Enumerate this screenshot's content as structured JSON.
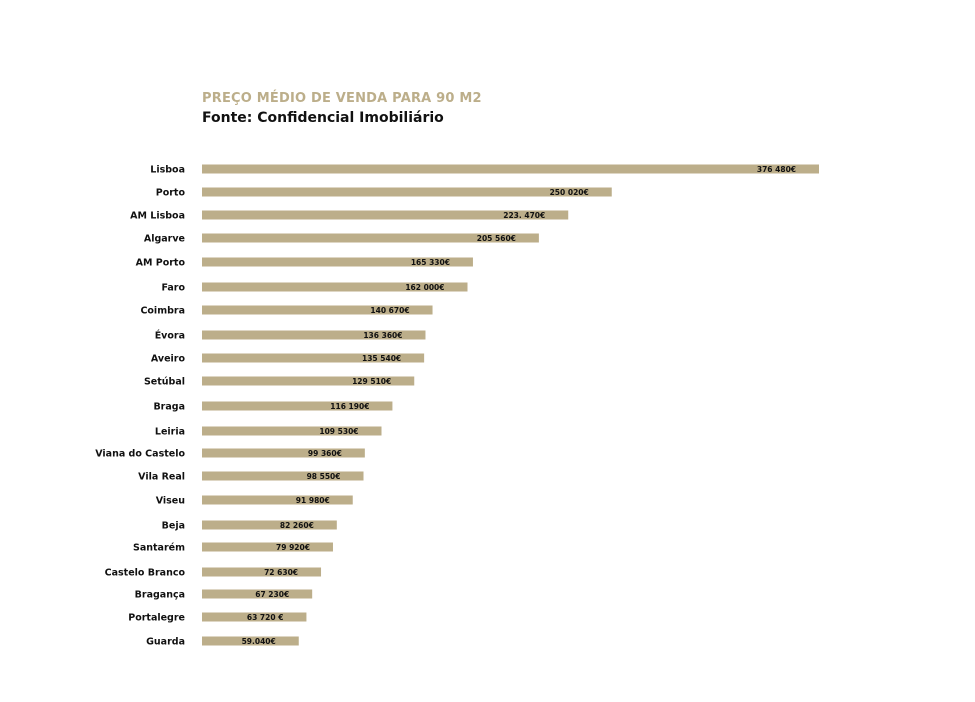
{
  "chart_data": {
    "type": "bar",
    "orientation": "horizontal",
    "title": "PREÇO MÉDIO DE VENDA PARA 90 M2",
    "subtitle": "Fonte: Confidencial Imobiliário",
    "bar_color": "#bcae8a",
    "title_color": "#bcae8a",
    "grid": false,
    "xlim": [
      0,
      376480
    ],
    "categories": [
      "Lisboa",
      "Porto",
      "AM Lisboa",
      "Algarve",
      "AM Porto",
      "Faro",
      "Coimbra",
      "Évora",
      "Aveiro",
      "Setúbal",
      "Braga",
      "Leiria",
      "Viana do Castelo",
      "Vila Real",
      "Viseu",
      "Beja",
      "Santarém",
      "Castelo Branco",
      "Bragança",
      "Portalegre",
      "Guarda"
    ],
    "values": [
      376480,
      250020,
      223470,
      205560,
      165330,
      162000,
      140670,
      136360,
      135540,
      129510,
      116190,
      109530,
      99360,
      98550,
      91980,
      82260,
      79920,
      72630,
      67230,
      63720,
      59040
    ],
    "data_labels": [
      "376 480€",
      "250 020€",
      "223. 470€",
      "205 560€",
      "165 330€",
      "162 000€",
      "140 670€",
      "136 360€",
      "135 540€",
      "129 510€",
      "116 190€",
      "109 530€",
      "99 360€",
      "98 550€",
      "91 980€",
      "82 260€",
      "79 920€",
      "72 630€",
      "67 230€",
      "63 720 €",
      "59.040€"
    ]
  }
}
